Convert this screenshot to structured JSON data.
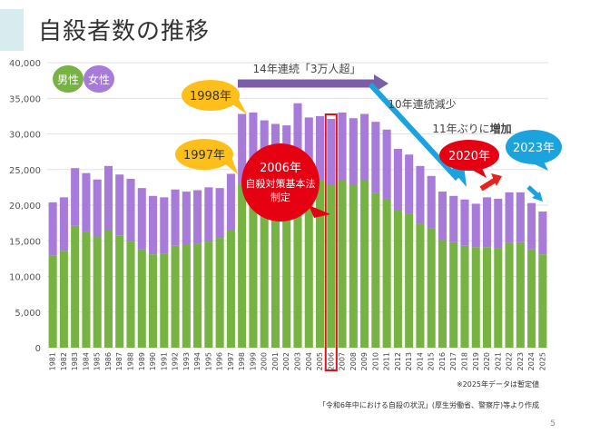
{
  "title": "自殺者数の推移",
  "legend": {
    "male": "男性",
    "female": "女性"
  },
  "colors": {
    "male": "#77b343",
    "female": "#a87ad9",
    "accent": "#7a5ea8"
  },
  "annotations": {
    "arrow_purple": "14年連続「3万人超」",
    "decline": "10年連続減少",
    "increase_prefix": "11年ぶりに",
    "increase_emphasis": "増加",
    "y1997": "1997年",
    "y1998": "1998年",
    "law_line1": "2006年",
    "law_line2": "自殺対策基本法",
    "law_line3": "制定",
    "y2020": "2020年",
    "y2023": "2023年"
  },
  "notes": {
    "provisional": "※2025年データは暫定値",
    "source": "「令和6年中における自殺の状況」(厚生労働省、警察庁)等より作成"
  },
  "page_number": "5",
  "chart_data": {
    "type": "bar",
    "stacked": true,
    "x": [
      1981,
      1982,
      1983,
      1984,
      1985,
      1986,
      1987,
      1988,
      1989,
      1990,
      1991,
      1992,
      1993,
      1994,
      1995,
      1996,
      1997,
      1998,
      1999,
      2000,
      2001,
      2002,
      2003,
      2004,
      2005,
      2006,
      2007,
      2008,
      2009,
      2010,
      2011,
      2012,
      2013,
      2014,
      2015,
      2016,
      2017,
      2018,
      2019,
      2020,
      2021,
      2022,
      2023,
      2024,
      2025
    ],
    "series": [
      {
        "name": "男性",
        "values": [
          12900,
          13600,
          17100,
          16300,
          15600,
          16500,
          15700,
          14900,
          13800,
          13100,
          13200,
          14300,
          14400,
          14600,
          14900,
          15400,
          16500,
          23000,
          23500,
          22700,
          21900,
          22200,
          23400,
          22800,
          23500,
          22800,
          23500,
          22800,
          23500,
          21700,
          20900,
          19300,
          18800,
          17400,
          16700,
          15100,
          14800,
          14300,
          14100,
          14100,
          13900,
          14700,
          14800,
          13800,
          13100
        ]
      },
      {
        "name": "女性",
        "values": [
          7500,
          7500,
          8100,
          8200,
          8000,
          9000,
          8600,
          8800,
          8600,
          8200,
          7900,
          7900,
          7500,
          7500,
          7600,
          7000,
          7900,
          9800,
          9500,
          9200,
          9500,
          9000,
          10900,
          9500,
          9000,
          9300,
          9500,
          9400,
          9300,
          10000,
          9700,
          8600,
          8300,
          8100,
          7400,
          6800,
          6500,
          6500,
          6100,
          7000,
          7000,
          7100,
          7000,
          6500,
          6000
        ]
      }
    ],
    "ylim": [
      0,
      40000
    ],
    "yticks": [
      "0",
      "5,000",
      "10,000",
      "15,000",
      "20,000",
      "25,000",
      "30,000",
      "35,000",
      "40,000"
    ],
    "grid": true,
    "legend_position": "top-left",
    "highlight": 2006
  }
}
